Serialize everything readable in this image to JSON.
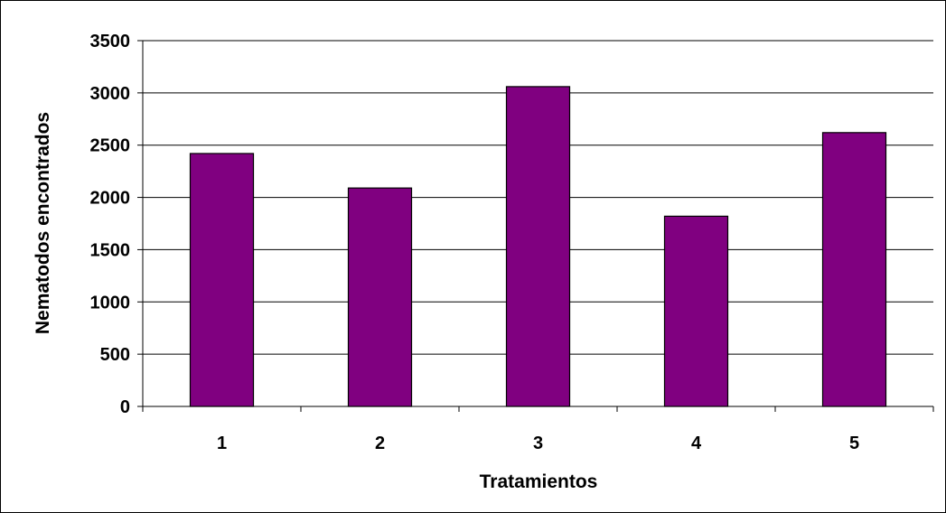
{
  "chart_data": {
    "type": "bar",
    "categories": [
      "1",
      "2",
      "3",
      "4",
      "5"
    ],
    "values": [
      2420,
      2090,
      3060,
      1820,
      2620
    ],
    "title": "",
    "xlabel": "Tratamientos",
    "ylabel": "Nematodos encontrados",
    "ylim": [
      0,
      3500
    ],
    "yticks": [
      0,
      500,
      1000,
      1500,
      2000,
      2500,
      3000,
      3500
    ],
    "grid": true,
    "legend": "none",
    "bar_color": "#800080",
    "bar_edge_color": "#000000"
  }
}
